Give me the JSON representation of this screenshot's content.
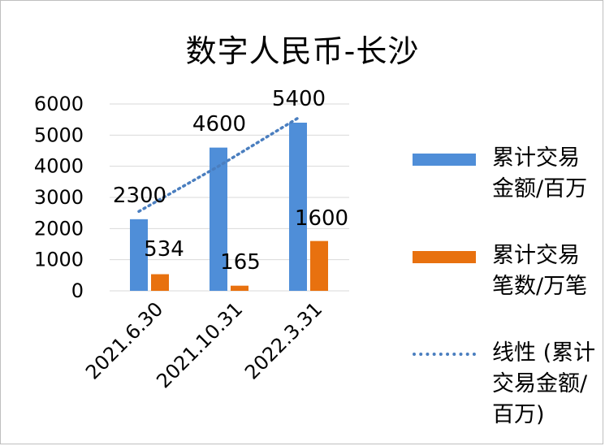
{
  "chart_data": {
    "type": "bar",
    "title": "数字人民币-长沙",
    "categories": [
      "2021.6.30",
      "2021.10.31",
      "2022.3.31"
    ],
    "series": [
      {
        "name": "累计交易金额/百万",
        "type": "bar",
        "color": "#4f8ed8",
        "values": [
          2300,
          4600,
          5400
        ]
      },
      {
        "name": "累计交易笔数/万笔",
        "type": "bar",
        "color": "#e8710f",
        "values": [
          534,
          165,
          1600
        ]
      },
      {
        "name": "线性 (累计交易金额/百万)",
        "type": "trendline",
        "color": "#4a7ebf",
        "values": [
          2550,
          4000,
          5550
        ]
      }
    ],
    "data_labels": [
      "2300",
      "4600",
      "5400",
      "534",
      "165",
      "1600"
    ],
    "y_ticks": [
      "0",
      "1000",
      "2000",
      "3000",
      "4000",
      "5000",
      "6000"
    ],
    "ylim": [
      0,
      6000
    ],
    "grid": true,
    "legend_position": "right"
  }
}
